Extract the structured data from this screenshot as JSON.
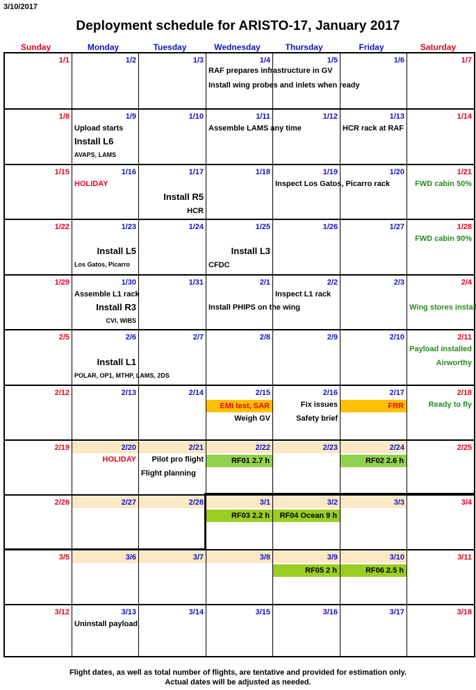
{
  "print_date": "3/10/2017",
  "title": "Deployment schedule for ARISTO-17, January 2017",
  "day_headers": [
    "Sunday",
    "Monday",
    "Tuesday",
    "Wednesday",
    "Thursday",
    "Friday",
    "Saturday"
  ],
  "colors": {
    "weekend": "#e8001c",
    "weekday": "#1010c8",
    "event_red": "#e8001c",
    "event_green": "#268a1e",
    "deployment_day": "#fbe8c4",
    "flight_highlight": "#9acd22",
    "review_highlight": "#ffc000"
  },
  "weeks": [
    {
      "dates": [
        "1/1",
        "1/2",
        "1/3",
        "1/4",
        "1/5",
        "1/6",
        "1/7"
      ]
    },
    {
      "dates": [
        "1/8",
        "1/9",
        "1/10",
        "1/11",
        "1/12",
        "1/13",
        "1/14"
      ]
    },
    {
      "dates": [
        "1/15",
        "1/16",
        "1/17",
        "1/18",
        "1/19",
        "1/20",
        "1/21"
      ]
    },
    {
      "dates": [
        "1/22",
        "1/23",
        "1/24",
        "1/25",
        "1/26",
        "1/27",
        "1/28"
      ]
    },
    {
      "dates": [
        "1/29",
        "1/30",
        "1/31",
        "2/1",
        "2/2",
        "2/3",
        "2/4"
      ]
    },
    {
      "dates": [
        "2/5",
        "2/6",
        "2/7",
        "2/8",
        "2/9",
        "2/10",
        "2/11"
      ]
    },
    {
      "dates": [
        "2/12",
        "2/13",
        "2/14",
        "2/15",
        "2/16",
        "2/17",
        "2/18"
      ]
    },
    {
      "dates": [
        "2/19",
        "2/20",
        "2/21",
        "2/22",
        "2/23",
        "2/24",
        "2/25"
      ]
    },
    {
      "dates": [
        "2/26",
        "2/27",
        "2/28",
        "3/1",
        "3/2",
        "3/3",
        "3/4"
      ]
    },
    {
      "dates": [
        "3/5",
        "3/6",
        "3/7",
        "3/8",
        "3/9",
        "3/10",
        "3/11"
      ]
    },
    {
      "dates": [
        "3/12",
        "3/13",
        "3/14",
        "3/15",
        "3/16",
        "3/17",
        "3/18"
      ]
    }
  ],
  "events": {
    "raf_prepares": "RAF prepares infrastructure in GV",
    "install_wing_probes": "Install wing probes and inlets when ready",
    "upload_starts": "Upload starts",
    "install_l6": "Install L6",
    "install_l6_items": "AVAPS, LAMS",
    "assemble_lams": "Assemble LAMS any time",
    "hcr_rack": "HCR rack at RAF",
    "holiday_1": "HOLIDAY",
    "install_r5": "Install R5",
    "install_r5_items": "HCR",
    "inspect_los_gatos": "Inspect Los Gatos, Picarro rack",
    "fwd_cabin_50": "FWD cabin 50%",
    "install_l5": "Install L5",
    "install_l5_items": "Los Gatos, Picarro",
    "install_l3": "Install L3",
    "install_l3_items": "CFDC",
    "fwd_cabin_90": "FWD cabin 90%",
    "assemble_l1_rack": "Assemble L1 rack",
    "install_r3": "Install R3",
    "install_r3_items": "CVI, WIBS",
    "inspect_l1_rack": "Inspect L1 rack",
    "install_phips": "Install PHIPS on the wing",
    "wing_stores": "Wing stores installed",
    "install_l1": "Install L1",
    "install_l1_items": "POLAR, OP1, MTHP, LAMS, 2DS",
    "payload_installed": "Payload installed",
    "airworthy": "Airworthy",
    "emi_test": "EMI test, SAR",
    "weigh_gv": "Weigh GV",
    "fix_issues": "Fix issues",
    "safety_brief": "Safety brief",
    "frr": "FRR",
    "ready_to_fly": "Ready to fly",
    "holiday_2": "HOLIDAY",
    "pilot_pro_flight": "Pilot pro flight",
    "flight_planning": "Flight planning",
    "rf01": "RF01 2.7 h",
    "rf02": "RF02 2.6 h",
    "rf03": "RF03 2.2 h",
    "rf04": "RF04 Ocean 9 h",
    "rf05": "RF05 2 h",
    "rf06": "RF06 2.5 h",
    "uninstall_payload": "Uninstall payload"
  },
  "footer": {
    "line1": "Flight dates, as well as total number of flights, are tentative and provided for estimation only.",
    "line2": "Actual dates will be adjusted as needed."
  }
}
